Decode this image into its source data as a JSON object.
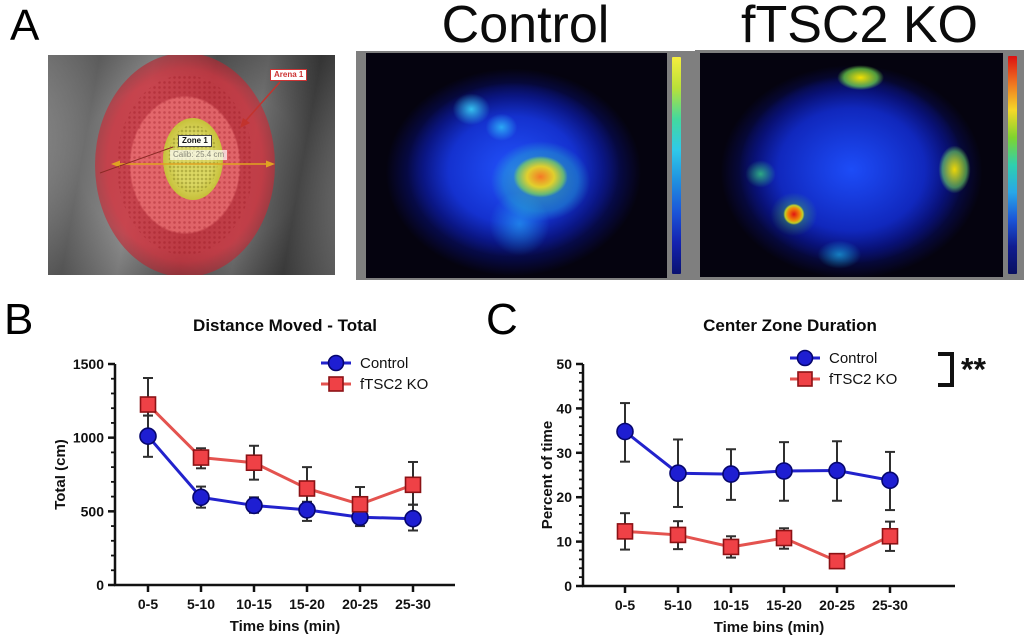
{
  "figure": {
    "panel_a_label": "A",
    "panel_b_label": "B",
    "panel_c_label": "C"
  },
  "arena": {
    "arena_label": "Arena 1",
    "zone_label": "Zone 1",
    "calib_label": "Calib: 25.4 cm",
    "overlay_color": "#d7333f",
    "zone_color": "#c9c437"
  },
  "heatmaps": {
    "control_title": "Control",
    "ko_title": "fTSC2 KO",
    "control_colorbar": [
      "#f6ee3e",
      "#b9e039",
      "#43d99e",
      "#2fc9e9",
      "#2090e0",
      "#1b55d8",
      "#1422b0",
      "#0a1270"
    ],
    "ko_colorbar": [
      "#dd1111",
      "#ef7420",
      "#f5d828",
      "#7ed42f",
      "#2fd0af",
      "#28a8e8",
      "#1b55d8",
      "#101c90",
      "#0a1060"
    ]
  },
  "colors": {
    "error_bar": "#2f2f2f",
    "axis": "#111111"
  },
  "chart_data": [
    {
      "type": "line",
      "title": "Distance Moved - Total",
      "xlabel": "Time bins (min)",
      "ylabel": "Total (cm)",
      "categories": [
        "0-5",
        "5-10",
        "10-15",
        "15-20",
        "20-25",
        "25-30"
      ],
      "ylim": [
        0,
        1500
      ],
      "yticks": [
        0,
        500,
        1000,
        1500
      ],
      "minor_step": 100,
      "grid": false,
      "legend_position": "top-right",
      "significance": null,
      "series": [
        {
          "name": "Control",
          "marker": "circle",
          "color": "#1e1ed2",
          "edge": "#06066e",
          "line": "#2222cc",
          "values": [
            1010,
            595,
            540,
            510,
            460,
            450
          ],
          "err_lo": [
            870,
            525,
            490,
            435,
            400,
            370
          ],
          "err_hi": [
            1150,
            668,
            595,
            565,
            512,
            545
          ]
        },
        {
          "name": "fTSC2 KO",
          "marker": "square",
          "color": "#ef4146",
          "edge": "#8c1215",
          "line": "#e4534f",
          "values": [
            1225,
            865,
            830,
            655,
            548,
            680
          ],
          "err_lo": [
            1150,
            792,
            715,
            560,
            490,
            545
          ],
          "err_hi": [
            1405,
            928,
            945,
            800,
            665,
            835
          ]
        }
      ]
    },
    {
      "type": "line",
      "title": "Center Zone Duration",
      "xlabel": "Time bins (min)",
      "ylabel": "Percent of time",
      "categories": [
        "0-5",
        "5-10",
        "10-15",
        "15-20",
        "20-25",
        "25-30"
      ],
      "ylim": [
        0,
        50
      ],
      "yticks": [
        0,
        10,
        20,
        30,
        40,
        50
      ],
      "minor_step": 2,
      "grid": false,
      "legend_position": "top-right",
      "significance": "**",
      "series": [
        {
          "name": "Control",
          "marker": "circle",
          "color": "#1e1ed2",
          "edge": "#06066e",
          "line": "#2222cc",
          "values": [
            34.8,
            25.4,
            25.2,
            25.9,
            26.0,
            23.8
          ],
          "err_lo": [
            28.0,
            17.8,
            19.4,
            19.2,
            19.2,
            17.1
          ],
          "err_hi": [
            41.2,
            33.0,
            30.8,
            32.4,
            32.6,
            30.2
          ]
        },
        {
          "name": "fTSC2 KO",
          "marker": "square",
          "color": "#ef4146",
          "edge": "#8c1215",
          "line": "#e4534f",
          "values": [
            12.3,
            11.5,
            8.8,
            10.8,
            5.6,
            11.2
          ],
          "err_lo": [
            8.2,
            8.3,
            6.4,
            8.4,
            5.0,
            7.9
          ],
          "err_hi": [
            16.4,
            14.6,
            11.2,
            13.0,
            6.2,
            14.5
          ]
        }
      ]
    }
  ]
}
